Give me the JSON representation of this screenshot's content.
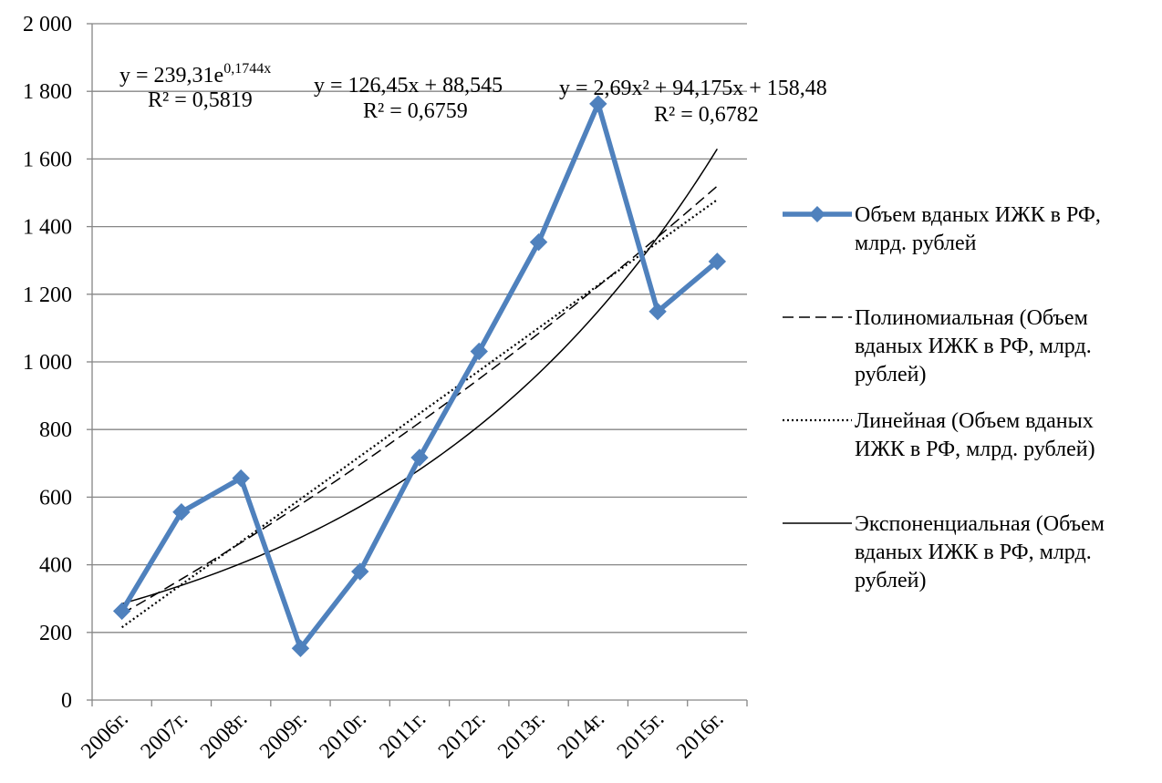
{
  "chart_data": {
    "type": "line",
    "categories": [
      "2006г.",
      "2007г.",
      "2008г.",
      "2009г.",
      "2010г.",
      "2011г.",
      "2012г.",
      "2013г.",
      "2014г.",
      "2015г.",
      "2016г."
    ],
    "ylim": [
      0,
      2000
    ],
    "y_ticks": [
      0,
      200,
      400,
      600,
      800,
      1000,
      1200,
      1400,
      1600,
      1800,
      2000
    ],
    "y_tick_labels": [
      "0",
      "200",
      "400",
      "600",
      "800",
      "1 000",
      "1 200",
      "1 400",
      "1 600",
      "1 800",
      "2 000"
    ],
    "grid": "horizontal",
    "legend_position": "right",
    "series": [
      {
        "name": "Объем вданых ИЖК в РФ, млрд. рублей",
        "legend_lines": [
          "Объем вданых ИЖК в РФ,",
          "млрд. рублей"
        ],
        "values": [
          263,
          556,
          656,
          153,
          380,
          717,
          1031,
          1354,
          1763,
          1149,
          1297
        ],
        "color": "#4f81bd",
        "marker": "diamond"
      }
    ],
    "trendlines": [
      {
        "name": "Полиномиальная (Объем вданых ИЖК в РФ, млрд. рублей)",
        "legend_lines": [
          "Полиномиальная (Объем",
          "вданых ИЖК в РФ, млрд.",
          "рублей)"
        ],
        "kind": "polynomial",
        "coefficients": [
          158.48,
          94.175,
          2.69
        ],
        "style": "dashed",
        "equation_lines": [
          "y = 2,69x² + 94,175x + 158,48",
          "R² = 0,6782"
        ]
      },
      {
        "name": "Линейная (Объем вданых ИЖК в РФ, млрд. рублей)",
        "legend_lines": [
          "Линейная (Объем вданых",
          "ИЖК в РФ, млрд. рублей)"
        ],
        "kind": "linear",
        "coefficients": [
          88.545,
          126.45
        ],
        "style": "dotted",
        "equation_lines": [
          "y = 126,45x + 88,545",
          "R² = 0,6759"
        ]
      },
      {
        "name": "Экспоненциальная (Объем вданых ИЖК в РФ, млрд. рублей)",
        "legend_lines": [
          "Экспоненциальная (Объем",
          "вданых ИЖК в РФ, млрд.",
          "рублей)"
        ],
        "kind": "exponential",
        "coefficients": [
          239.31,
          0.1744
        ],
        "style": "solid",
        "equation_base": "y = 239,31e",
        "equation_exponent": "0,1744x",
        "equation_r2": "R² = 0,5819"
      }
    ]
  }
}
